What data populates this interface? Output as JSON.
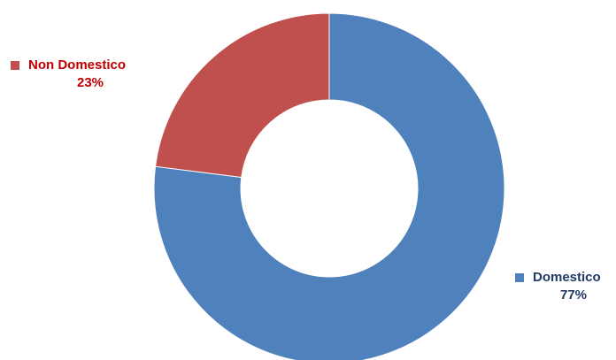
{
  "chart_data": {
    "type": "pie",
    "variant": "doughnut",
    "categories": [
      "Domestico",
      "Non Domestico"
    ],
    "values": [
      77,
      23
    ],
    "unit": "%",
    "colors": [
      "#4F81BD",
      "#C0504D"
    ],
    "data_labels": [
      {
        "name": "Domestico",
        "value": "77%"
      },
      {
        "name": "Non Domestico",
        "value": "23%"
      }
    ],
    "legend_position": "outside labels",
    "start_angle_deg": 0,
    "direction": "clockwise"
  }
}
